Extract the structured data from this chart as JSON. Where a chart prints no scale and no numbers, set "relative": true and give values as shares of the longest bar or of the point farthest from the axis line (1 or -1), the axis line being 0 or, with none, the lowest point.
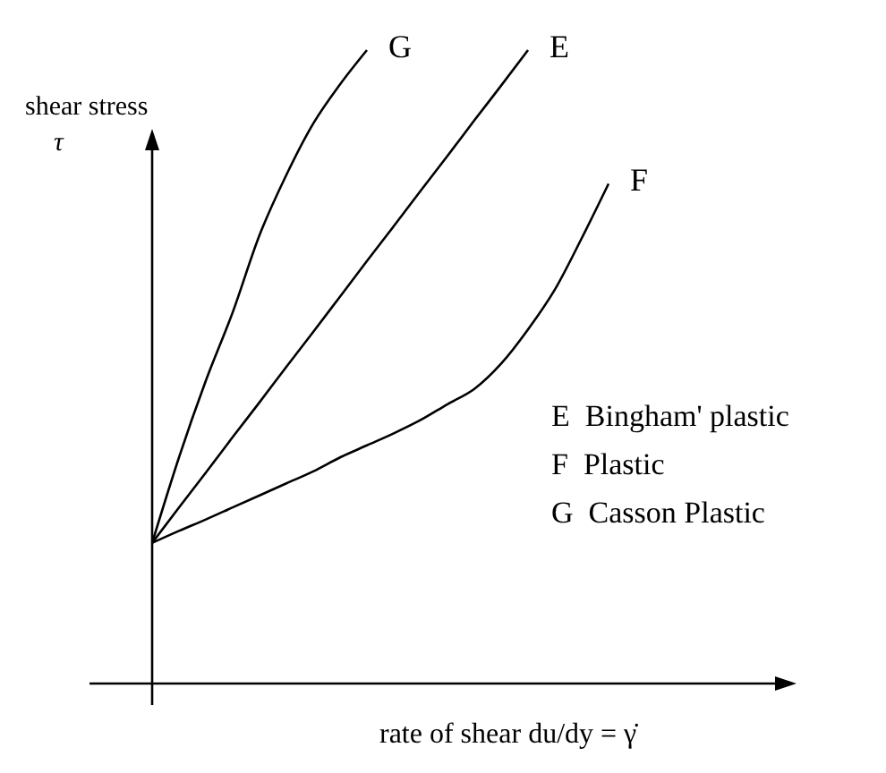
{
  "chart_data": {
    "type": "line",
    "relative": true,
    "xlabel": "rate of shear du/dy = γ̇",
    "ylabel": "shear stress\nτ",
    "categories": [
      null,
      null,
      null,
      null,
      null,
      null,
      null,
      null,
      null,
      null,
      null,
      null,
      null,
      null,
      null,
      null,
      null,
      null
    ],
    "series": [
      {
        "name": "G",
        "color": "#000000",
        "values": [
          0.222,
          0.357,
          0.478,
          0.586,
          0.708,
          0.803,
          0.884,
          0.946,
          1.0,
          null,
          null,
          null,
          null,
          null,
          null,
          null,
          null,
          null
        ]
      },
      {
        "name": "E",
        "color": "#000000",
        "values": [
          0.222,
          0.278,
          0.333,
          0.389,
          0.444,
          0.5,
          0.555,
          0.611,
          0.667,
          0.722,
          0.778,
          0.833,
          0.889,
          0.944,
          1.0,
          null,
          null,
          null
        ]
      },
      {
        "name": "F",
        "color": "#000000",
        "values": [
          0.222,
          0.241,
          0.259,
          0.278,
          0.297,
          0.316,
          0.335,
          0.357,
          0.376,
          0.395,
          0.416,
          0.441,
          0.465,
          0.505,
          0.559,
          0.622,
          0.703,
          0.789
        ]
      }
    ],
    "annotations": [
      "E  Bingham' plastic",
      "F  Plastic",
      "G  Casson Plastic"
    ]
  }
}
